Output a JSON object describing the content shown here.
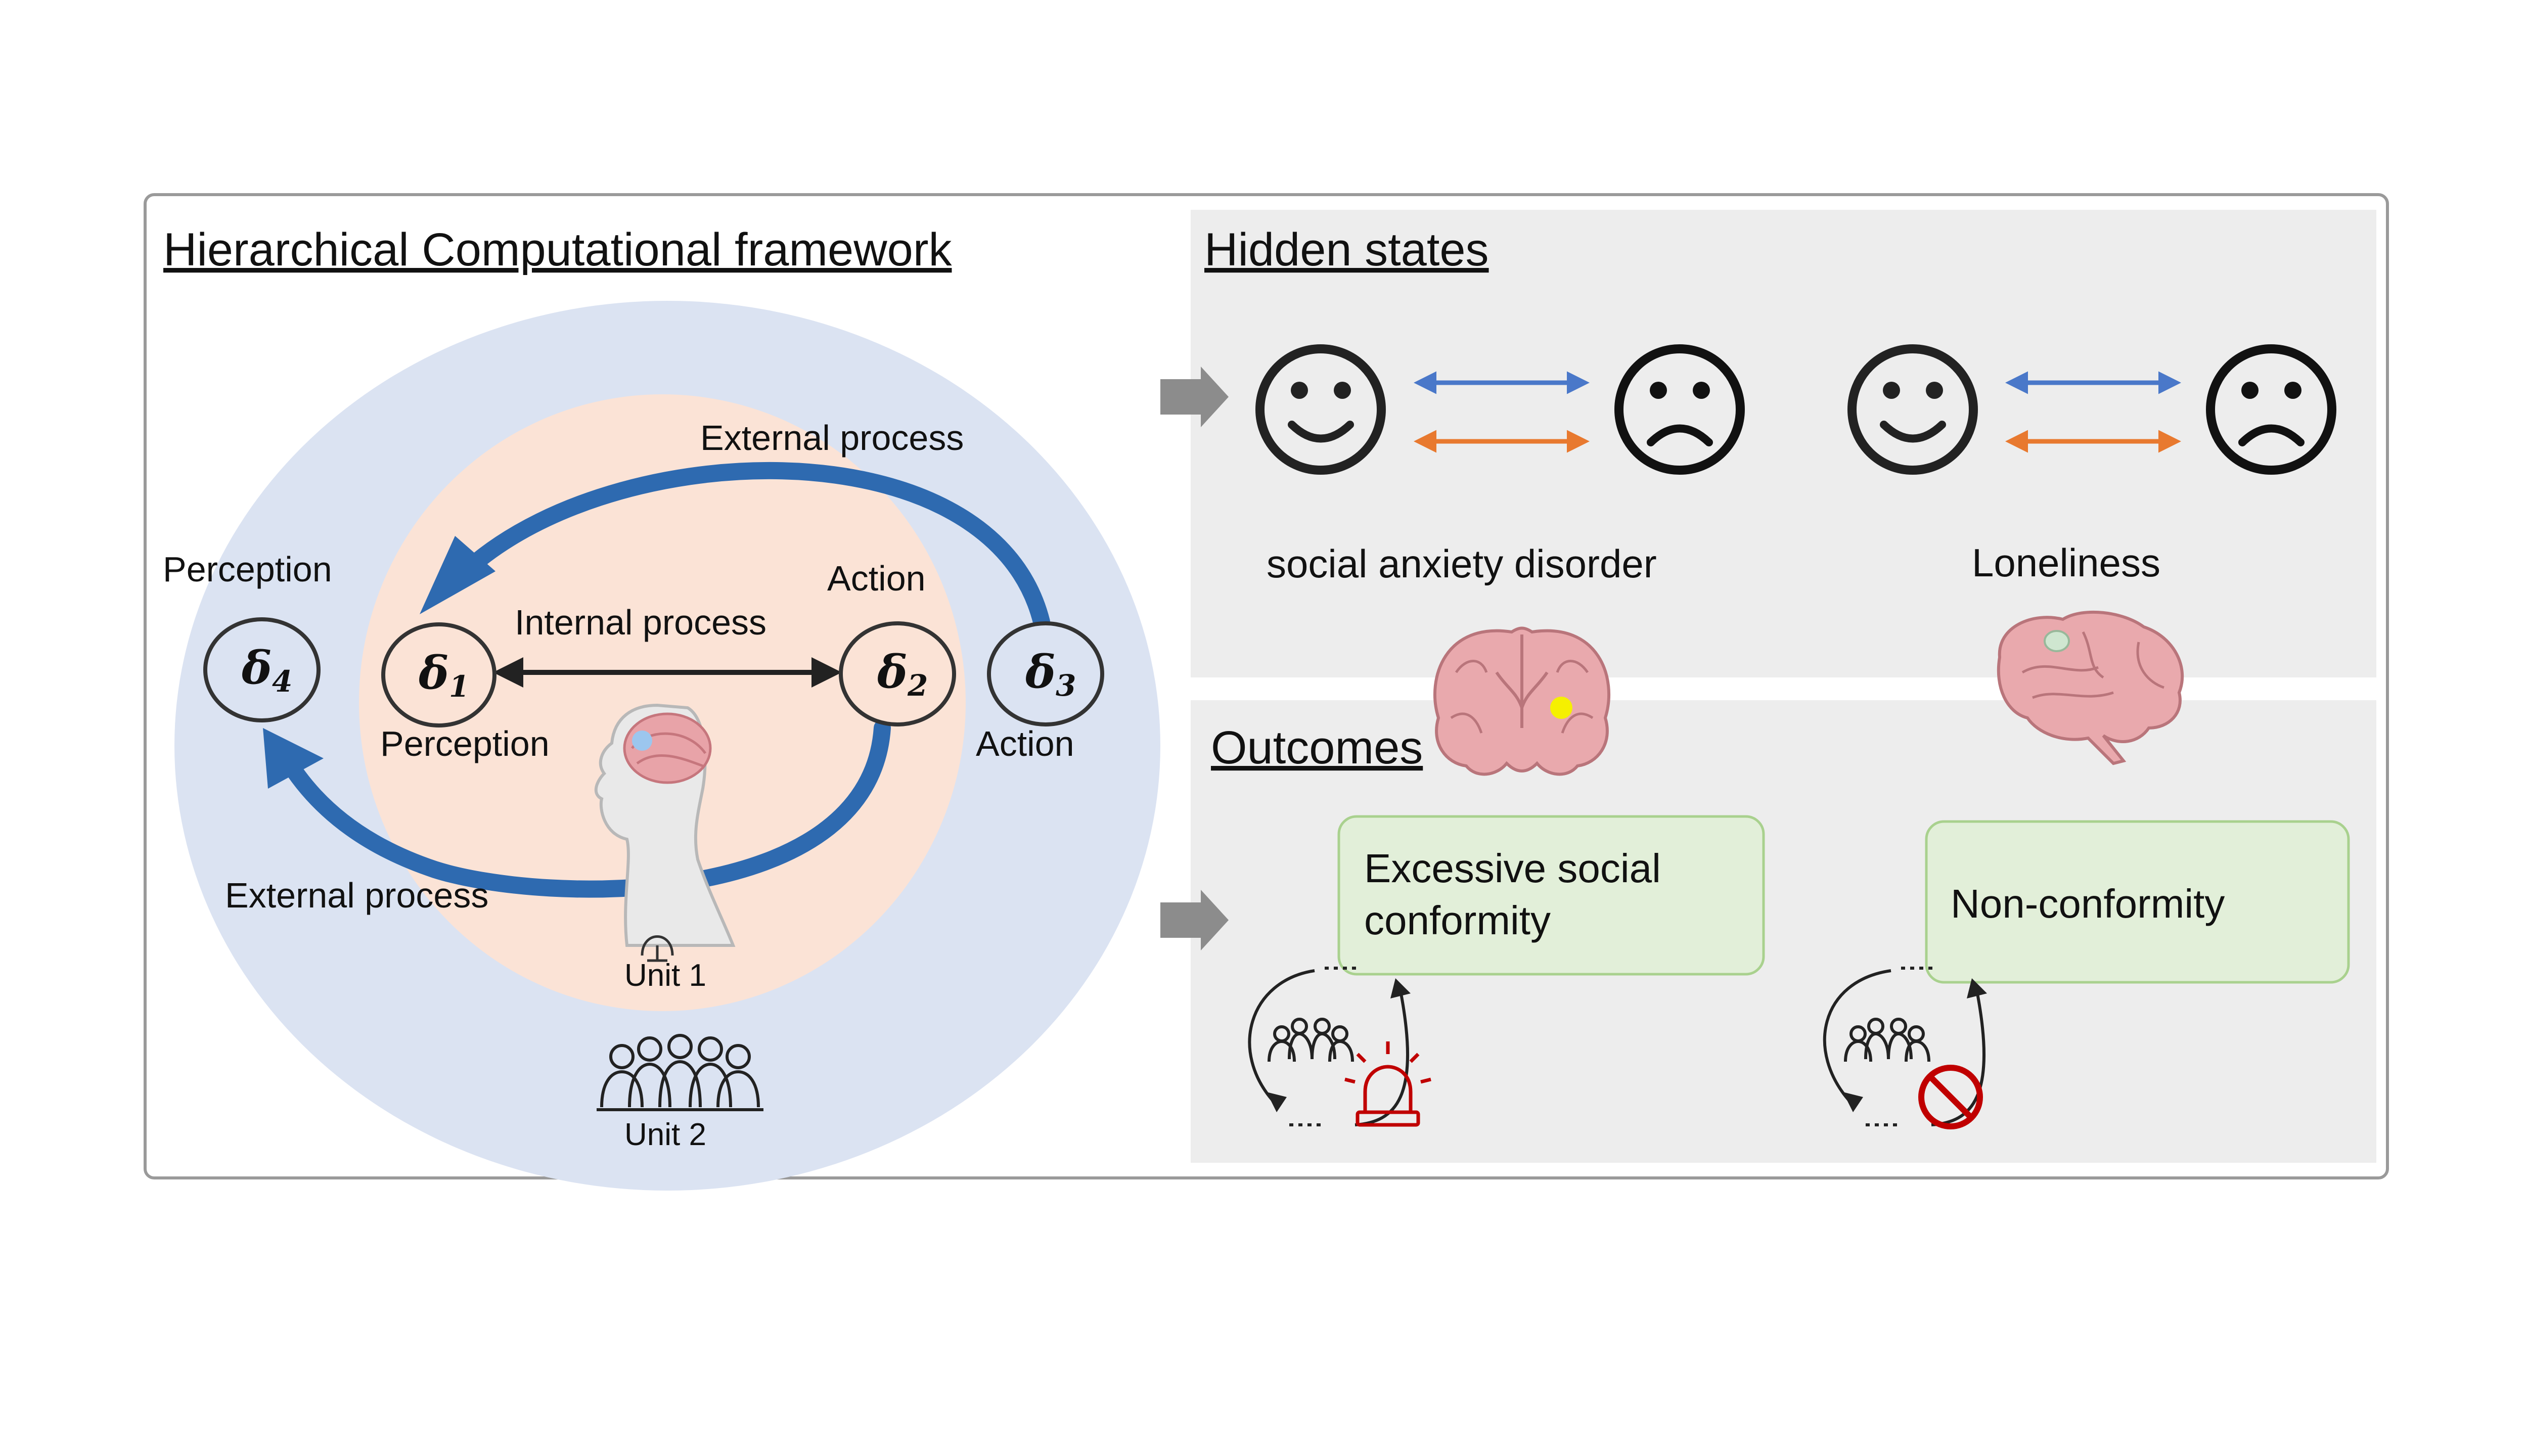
{
  "framework": {
    "title": "Hierarchical Computational framework",
    "labels": {
      "external_top": "External process",
      "external_bottom": "External process",
      "internal": "Internal process",
      "perception_outer": "Perception",
      "perception_inner": "Perception",
      "action_inner": "Action",
      "action_outer": "Action"
    },
    "nodes": [
      {
        "symbol": "δ",
        "sub": "4"
      },
      {
        "symbol": "δ",
        "sub": "1"
      },
      {
        "symbol": "δ",
        "sub": "2"
      },
      {
        "symbol": "δ",
        "sub": "3"
      }
    ],
    "units": {
      "unit1": "Unit 1",
      "unit2": "Unit 2"
    }
  },
  "hidden_states": {
    "title": "Hidden states",
    "conditions": [
      {
        "label": "social anxiety disorder"
      },
      {
        "label": "Loneliness"
      }
    ]
  },
  "outcomes": {
    "title": "Outcomes",
    "boxes": [
      {
        "lines": [
          "Excessive social",
          "conformity"
        ]
      },
      {
        "lines": [
          "Non-conformity"
        ]
      }
    ]
  },
  "colors": {
    "outer_circle": "#dbe3f2",
    "inner_circle": "#fbe3d6",
    "arrow_blue": "#2e6ab0",
    "arrow_orange": "#e8792f",
    "arrow_light_blue": "#4a78c9",
    "panel_gray": "#ededed",
    "outcome_box": "#e2efd9",
    "outcome_border": "#a9d18e",
    "alarm_red": "#c00000"
  }
}
